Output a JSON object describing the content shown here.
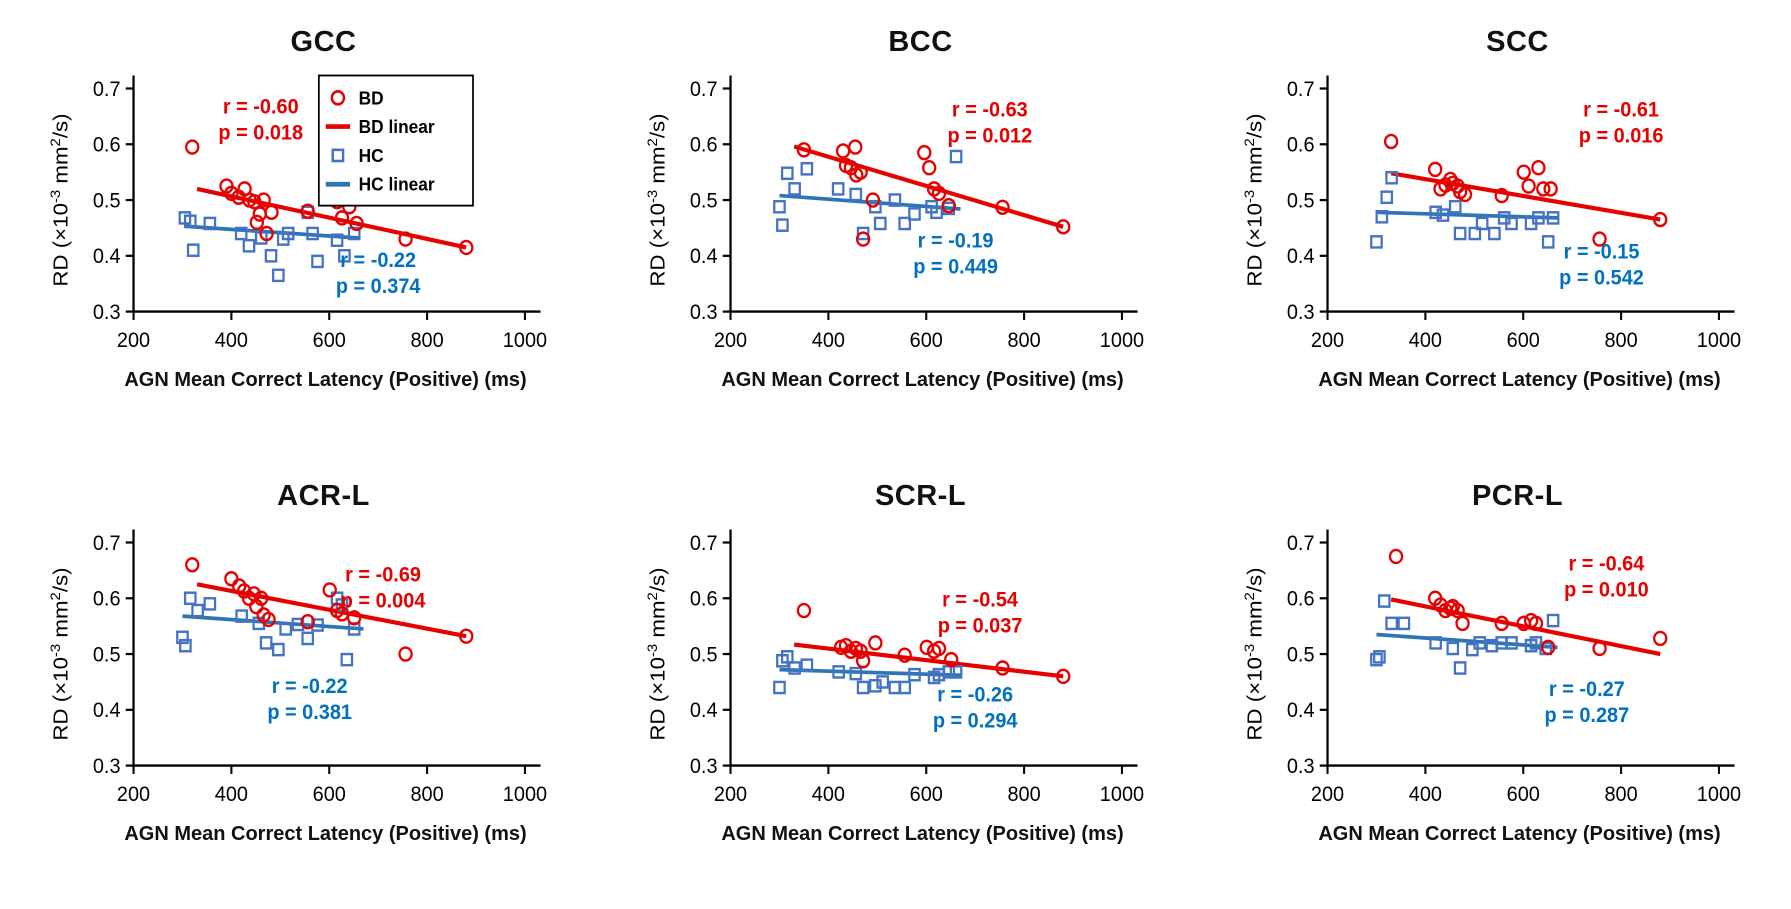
{
  "colors": {
    "bd": "#e60000",
    "hc_marker": "#4472c4",
    "hc_line": "#2e75b6",
    "hc_text": "#0070c0",
    "axis": "#000000"
  },
  "axes": {
    "xlabel": "AGN Mean Correct Latency (Positive) (ms)",
    "ylabel_segments": [
      {
        "t": "RD (×10",
        "sup": false
      },
      {
        "t": "-3",
        "sup": true
      },
      {
        "t": " mm",
        "sup": false
      },
      {
        "t": "2",
        "sup": true
      },
      {
        "t": "/s)",
        "sup": false
      }
    ],
    "xlim": [
      200,
      1000
    ],
    "ylim": [
      0.3,
      0.7
    ],
    "xticks": [
      200,
      400,
      600,
      800,
      1000
    ],
    "yticks": [
      0.3,
      0.4,
      0.5,
      0.6,
      0.7
    ],
    "grid": false
  },
  "legend": {
    "panel": 0,
    "items": [
      {
        "label": "BD",
        "marker": "circle",
        "role": "bd"
      },
      {
        "label": "BD linear",
        "marker": "line",
        "role": "bd"
      },
      {
        "label": "HC",
        "marker": "square",
        "role": "hc"
      },
      {
        "label": "HC linear",
        "marker": "line",
        "role": "hc"
      }
    ]
  },
  "chart_data": [
    {
      "type": "scatter",
      "title": "GCC",
      "bd": {
        "label": "BD",
        "points": [
          [
            320,
            0.595
          ],
          [
            390,
            0.525
          ],
          [
            400,
            0.512
          ],
          [
            415,
            0.505
          ],
          [
            427,
            0.52
          ],
          [
            437,
            0.5
          ],
          [
            447,
            0.497
          ],
          [
            452,
            0.46
          ],
          [
            458,
            0.475
          ],
          [
            466,
            0.5
          ],
          [
            472,
            0.44
          ],
          [
            482,
            0.478
          ],
          [
            556,
            0.48
          ],
          [
            600,
            0.52
          ],
          [
            616,
            0.497
          ],
          [
            626,
            0.468
          ],
          [
            641,
            0.488
          ],
          [
            656,
            0.458
          ],
          [
            756,
            0.43
          ],
          [
            880,
            0.415
          ]
        ],
        "line": [
          [
            330,
            0.52
          ],
          [
            880,
            0.415
          ]
        ],
        "stats": {
          "r": "r = -0.60",
          "p": "p = 0.018",
          "x": 460,
          "y": 0.645
        }
      },
      "hc": {
        "label": "HC",
        "points": [
          [
            305,
            0.468
          ],
          [
            316,
            0.462
          ],
          [
            322,
            0.41
          ],
          [
            356,
            0.458
          ],
          [
            420,
            0.44
          ],
          [
            436,
            0.418
          ],
          [
            461,
            0.432
          ],
          [
            481,
            0.4
          ],
          [
            496,
            0.365
          ],
          [
            506,
            0.43
          ],
          [
            516,
            0.44
          ],
          [
            556,
            0.478
          ],
          [
            566,
            0.44
          ],
          [
            576,
            0.39
          ],
          [
            616,
            0.428
          ],
          [
            631,
            0.4
          ],
          [
            651,
            0.44
          ]
        ],
        "line": [
          [
            305,
            0.453
          ],
          [
            660,
            0.432
          ]
        ],
        "stats": {
          "r": "r = -0.22",
          "p": "p = 0.374",
          "x": 700,
          "y": 0.37
        }
      }
    },
    {
      "type": "scatter",
      "title": "BCC",
      "bd": {
        "label": "BD",
        "points": [
          [
            350,
            0.59
          ],
          [
            430,
            0.588
          ],
          [
            436,
            0.562
          ],
          [
            446,
            0.558
          ],
          [
            455,
            0.595
          ],
          [
            457,
            0.545
          ],
          [
            466,
            0.55
          ],
          [
            471,
            0.43
          ],
          [
            491,
            0.5
          ],
          [
            596,
            0.585
          ],
          [
            606,
            0.558
          ],
          [
            616,
            0.52
          ],
          [
            626,
            0.512
          ],
          [
            646,
            0.49
          ],
          [
            756,
            0.487
          ],
          [
            880,
            0.452
          ]
        ],
        "line": [
          [
            330,
            0.596
          ],
          [
            880,
            0.452
          ]
        ],
        "stats": {
          "r": "r = -0.63",
          "p": "p = 0.012",
          "x": 730,
          "y": 0.64
        }
      },
      "hc": {
        "label": "HC",
        "points": [
          [
            300,
            0.488
          ],
          [
            306,
            0.455
          ],
          [
            316,
            0.548
          ],
          [
            331,
            0.52
          ],
          [
            356,
            0.556
          ],
          [
            420,
            0.52
          ],
          [
            456,
            0.51
          ],
          [
            471,
            0.44
          ],
          [
            496,
            0.488
          ],
          [
            506,
            0.458
          ],
          [
            536,
            0.5
          ],
          [
            556,
            0.458
          ],
          [
            576,
            0.475
          ],
          [
            611,
            0.488
          ],
          [
            621,
            0.478
          ],
          [
            646,
            0.485
          ],
          [
            661,
            0.578
          ]
        ],
        "line": [
          [
            300,
            0.508
          ],
          [
            670,
            0.484
          ]
        ],
        "stats": {
          "r": "r = -0.19",
          "p": "p = 0.449",
          "x": 660,
          "y": 0.405
        }
      }
    },
    {
      "type": "scatter",
      "title": "SCC",
      "bd": {
        "label": "BD",
        "points": [
          [
            330,
            0.605
          ],
          [
            420,
            0.555
          ],
          [
            431,
            0.52
          ],
          [
            441,
            0.527
          ],
          [
            451,
            0.537
          ],
          [
            456,
            0.53
          ],
          [
            466,
            0.525
          ],
          [
            471,
            0.515
          ],
          [
            481,
            0.51
          ],
          [
            556,
            0.508
          ],
          [
            601,
            0.55
          ],
          [
            611,
            0.525
          ],
          [
            631,
            0.558
          ],
          [
            641,
            0.52
          ],
          [
            656,
            0.52
          ],
          [
            756,
            0.43
          ],
          [
            880,
            0.465
          ]
        ],
        "line": [
          [
            330,
            0.548
          ],
          [
            880,
            0.465
          ]
        ],
        "stats": {
          "r": "r = -0.61",
          "p": "p = 0.016",
          "x": 800,
          "y": 0.64
        }
      },
      "hc": {
        "label": "HC",
        "points": [
          [
            300,
            0.425
          ],
          [
            311,
            0.47
          ],
          [
            321,
            0.505
          ],
          [
            331,
            0.54
          ],
          [
            421,
            0.478
          ],
          [
            436,
            0.473
          ],
          [
            461,
            0.488
          ],
          [
            471,
            0.44
          ],
          [
            501,
            0.44
          ],
          [
            516,
            0.458
          ],
          [
            541,
            0.44
          ],
          [
            561,
            0.468
          ],
          [
            576,
            0.458
          ],
          [
            616,
            0.458
          ],
          [
            631,
            0.468
          ],
          [
            651,
            0.425
          ],
          [
            661,
            0.468
          ]
        ],
        "line": [
          [
            300,
            0.478
          ],
          [
            670,
            0.468
          ]
        ],
        "stats": {
          "r": "r = -0.15",
          "p": "p = 0.542",
          "x": 760,
          "y": 0.385
        }
      }
    },
    {
      "type": "scatter",
      "title": "ACR-L",
      "bd": {
        "label": "BD",
        "points": [
          [
            320,
            0.66
          ],
          [
            400,
            0.635
          ],
          [
            416,
            0.622
          ],
          [
            426,
            0.613
          ],
          [
            436,
            0.6
          ],
          [
            446,
            0.608
          ],
          [
            451,
            0.585
          ],
          [
            461,
            0.6
          ],
          [
            466,
            0.57
          ],
          [
            476,
            0.562
          ],
          [
            556,
            0.558
          ],
          [
            601,
            0.615
          ],
          [
            616,
            0.578
          ],
          [
            626,
            0.572
          ],
          [
            651,
            0.565
          ],
          [
            756,
            0.5
          ],
          [
            880,
            0.532
          ]
        ],
        "line": [
          [
            330,
            0.625
          ],
          [
            880,
            0.532
          ]
        ],
        "stats": {
          "r": "r = -0.69",
          "p": "p = 0.004",
          "x": 710,
          "y": 0.62
        }
      },
      "hc": {
        "label": "HC",
        "points": [
          [
            300,
            0.53
          ],
          [
            306,
            0.515
          ],
          [
            316,
            0.6
          ],
          [
            331,
            0.578
          ],
          [
            356,
            0.59
          ],
          [
            421,
            0.568
          ],
          [
            456,
            0.555
          ],
          [
            471,
            0.52
          ],
          [
            496,
            0.508
          ],
          [
            511,
            0.545
          ],
          [
            536,
            0.553
          ],
          [
            556,
            0.528
          ],
          [
            576,
            0.552
          ],
          [
            616,
            0.6
          ],
          [
            626,
            0.588
          ],
          [
            636,
            0.49
          ],
          [
            651,
            0.545
          ]
        ],
        "line": [
          [
            300,
            0.568
          ],
          [
            670,
            0.545
          ]
        ],
        "stats": {
          "r": "r = -0.22",
          "p": "p = 0.381",
          "x": 560,
          "y": 0.42
        }
      }
    },
    {
      "type": "scatter",
      "title": "SCR-L",
      "bd": {
        "label": "BD",
        "points": [
          [
            350,
            0.578
          ],
          [
            426,
            0.512
          ],
          [
            436,
            0.515
          ],
          [
            446,
            0.505
          ],
          [
            456,
            0.51
          ],
          [
            466,
            0.505
          ],
          [
            471,
            0.488
          ],
          [
            496,
            0.52
          ],
          [
            556,
            0.498
          ],
          [
            601,
            0.512
          ],
          [
            616,
            0.505
          ],
          [
            626,
            0.51
          ],
          [
            651,
            0.49
          ],
          [
            756,
            0.475
          ],
          [
            880,
            0.46
          ]
        ],
        "line": [
          [
            330,
            0.517
          ],
          [
            880,
            0.46
          ]
        ],
        "stats": {
          "r": "r = -0.54",
          "p": "p = 0.037",
          "x": 710,
          "y": 0.575
        }
      },
      "hc": {
        "label": "HC",
        "points": [
          [
            300,
            0.44
          ],
          [
            306,
            0.488
          ],
          [
            316,
            0.495
          ],
          [
            331,
            0.475
          ],
          [
            356,
            0.48
          ],
          [
            421,
            0.468
          ],
          [
            456,
            0.465
          ],
          [
            471,
            0.44
          ],
          [
            496,
            0.443
          ],
          [
            511,
            0.45
          ],
          [
            536,
            0.44
          ],
          [
            556,
            0.44
          ],
          [
            576,
            0.463
          ],
          [
            616,
            0.458
          ],
          [
            626,
            0.463
          ],
          [
            646,
            0.468
          ],
          [
            661,
            0.468
          ]
        ],
        "line": [
          [
            300,
            0.472
          ],
          [
            670,
            0.462
          ]
        ],
        "stats": {
          "r": "r = -0.26",
          "p": "p = 0.294",
          "x": 700,
          "y": 0.405
        }
      }
    },
    {
      "type": "scatter",
      "title": "PCR-L",
      "bd": {
        "label": "BD",
        "points": [
          [
            340,
            0.675
          ],
          [
            420,
            0.6
          ],
          [
            431,
            0.588
          ],
          [
            441,
            0.578
          ],
          [
            451,
            0.582
          ],
          [
            456,
            0.585
          ],
          [
            466,
            0.578
          ],
          [
            476,
            0.555
          ],
          [
            556,
            0.555
          ],
          [
            601,
            0.555
          ],
          [
            616,
            0.56
          ],
          [
            626,
            0.555
          ],
          [
            651,
            0.512
          ],
          [
            756,
            0.51
          ],
          [
            880,
            0.528
          ]
        ],
        "line": [
          [
            330,
            0.598
          ],
          [
            880,
            0.5
          ]
        ],
        "stats": {
          "r": "r = -0.64",
          "p": "p = 0.010",
          "x": 770,
          "y": 0.64
        }
      },
      "hc": {
        "label": "HC",
        "points": [
          [
            300,
            0.49
          ],
          [
            306,
            0.495
          ],
          [
            316,
            0.595
          ],
          [
            331,
            0.555
          ],
          [
            356,
            0.555
          ],
          [
            421,
            0.52
          ],
          [
            456,
            0.51
          ],
          [
            471,
            0.475
          ],
          [
            496,
            0.508
          ],
          [
            511,
            0.52
          ],
          [
            536,
            0.515
          ],
          [
            556,
            0.52
          ],
          [
            576,
            0.52
          ],
          [
            616,
            0.515
          ],
          [
            626,
            0.52
          ],
          [
            646,
            0.51
          ],
          [
            661,
            0.56
          ]
        ],
        "line": [
          [
            300,
            0.535
          ],
          [
            670,
            0.512
          ]
        ],
        "stats": {
          "r": "r = -0.27",
          "p": "p = 0.287",
          "x": 730,
          "y": 0.415
        }
      }
    }
  ]
}
